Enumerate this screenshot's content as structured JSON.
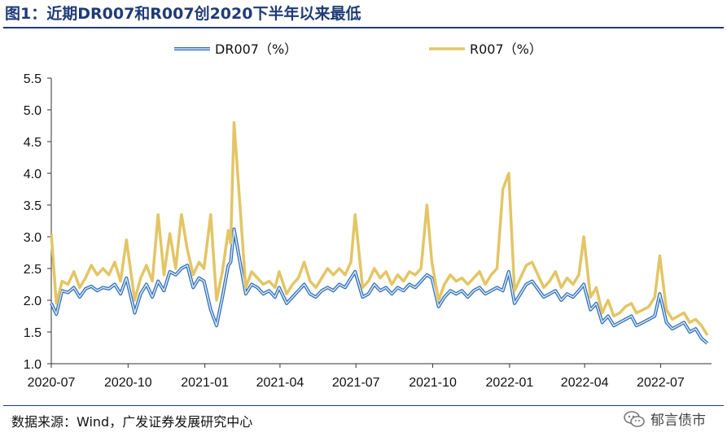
{
  "header": {
    "title": "图1：近期DR007和R007创2020下半年以来最低"
  },
  "footer": {
    "source": "数据来源：Wind，广发证券发展研究中心",
    "brand": "郁言债市",
    "brand_icon": "wechat-icon"
  },
  "colors": {
    "dr007": "#2f6eb5",
    "dr007_inner": "#d7e6f5",
    "r007": "#e3c565"
  },
  "chart_data": {
    "type": "line",
    "title": "图1：近期DR007和R007创2020下半年以来最低",
    "xlabel": "",
    "ylabel": "",
    "ylim": [
      1.0,
      5.5
    ],
    "yticks": [
      "1.0",
      "1.5",
      "2.0",
      "2.5",
      "3.0",
      "3.5",
      "4.0",
      "4.5",
      "5.0",
      "5.5"
    ],
    "xlim": [
      "2020-07-01",
      "2022-08-31"
    ],
    "xticks": [
      "2020-07",
      "2020-10",
      "2021-01",
      "2021-04",
      "2021-07",
      "2021-10",
      "2022-01",
      "2022-04",
      "2022-07"
    ],
    "grid": false,
    "legend_position": "top",
    "series": [
      {
        "name": "DR007（%）",
        "x": [
          "2020-07-01",
          "2020-07-07",
          "2020-07-14",
          "2020-07-21",
          "2020-07-28",
          "2020-08-04",
          "2020-08-11",
          "2020-08-18",
          "2020-08-25",
          "2020-09-01",
          "2020-09-08",
          "2020-09-15",
          "2020-09-22",
          "2020-09-29",
          "2020-10-09",
          "2020-10-16",
          "2020-10-23",
          "2020-10-30",
          "2020-11-06",
          "2020-11-13",
          "2020-11-20",
          "2020-11-27",
          "2020-12-04",
          "2020-12-11",
          "2020-12-18",
          "2020-12-25",
          "2020-12-31",
          "2021-01-08",
          "2021-01-15",
          "2021-01-22",
          "2021-01-29",
          "2021-02-01",
          "2021-02-05",
          "2021-02-19",
          "2021-02-26",
          "2021-03-05",
          "2021-03-12",
          "2021-03-19",
          "2021-03-26",
          "2021-03-31",
          "2021-04-09",
          "2021-04-16",
          "2021-04-23",
          "2021-04-30",
          "2021-05-07",
          "2021-05-14",
          "2021-05-21",
          "2021-05-28",
          "2021-06-04",
          "2021-06-11",
          "2021-06-18",
          "2021-06-25",
          "2021-06-30",
          "2021-07-09",
          "2021-07-16",
          "2021-07-23",
          "2021-07-30",
          "2021-08-06",
          "2021-08-13",
          "2021-08-20",
          "2021-08-27",
          "2021-09-03",
          "2021-09-10",
          "2021-09-17",
          "2021-09-24",
          "2021-09-30",
          "2021-10-08",
          "2021-10-15",
          "2021-10-22",
          "2021-10-29",
          "2021-11-05",
          "2021-11-12",
          "2021-11-19",
          "2021-11-26",
          "2021-12-03",
          "2021-12-10",
          "2021-12-17",
          "2021-12-24",
          "2021-12-31",
          "2022-01-07",
          "2022-01-14",
          "2022-01-21",
          "2022-01-28",
          "2022-02-11",
          "2022-02-18",
          "2022-02-25",
          "2022-03-04",
          "2022-03-11",
          "2022-03-18",
          "2022-03-25",
          "2022-03-31",
          "2022-04-08",
          "2022-04-15",
          "2022-04-22",
          "2022-04-29",
          "2022-05-06",
          "2022-05-13",
          "2022-05-20",
          "2022-05-27",
          "2022-06-02",
          "2022-06-10",
          "2022-06-17",
          "2022-06-24",
          "2022-06-30",
          "2022-07-08",
          "2022-07-15",
          "2022-07-22",
          "2022-07-29",
          "2022-08-05",
          "2022-08-12",
          "2022-08-19",
          "2022-08-26"
        ],
        "values": [
          1.95,
          1.78,
          2.15,
          2.12,
          2.2,
          2.05,
          2.18,
          2.22,
          2.15,
          2.2,
          2.18,
          2.25,
          2.1,
          2.35,
          1.8,
          2.1,
          2.25,
          2.05,
          2.3,
          2.15,
          2.45,
          2.4,
          2.5,
          2.55,
          2.2,
          2.35,
          2.3,
          1.85,
          1.6,
          2.05,
          2.55,
          2.6,
          3.12,
          2.1,
          2.25,
          2.2,
          2.1,
          2.15,
          2.05,
          2.2,
          1.95,
          2.05,
          2.15,
          2.25,
          2.1,
          2.05,
          2.15,
          2.2,
          2.15,
          2.25,
          2.2,
          2.35,
          2.45,
          2.05,
          2.1,
          2.25,
          2.15,
          2.2,
          2.1,
          2.2,
          2.15,
          2.25,
          2.2,
          2.3,
          2.4,
          2.35,
          1.9,
          2.05,
          2.15,
          2.1,
          2.15,
          2.05,
          2.15,
          2.2,
          2.1,
          2.15,
          2.2,
          2.15,
          2.45,
          1.95,
          2.1,
          2.25,
          2.3,
          2.05,
          2.1,
          2.15,
          2.0,
          2.1,
          2.05,
          2.15,
          2.25,
          1.85,
          1.95,
          1.65,
          1.75,
          1.6,
          1.65,
          1.7,
          1.75,
          1.6,
          1.65,
          1.7,
          1.75,
          2.1,
          1.65,
          1.55,
          1.6,
          1.65,
          1.5,
          1.55,
          1.4,
          1.32
        ]
      },
      {
        "name": "R007（%）",
        "x": [
          "2020-07-01",
          "2020-07-07",
          "2020-07-14",
          "2020-07-21",
          "2020-07-28",
          "2020-08-04",
          "2020-08-11",
          "2020-08-18",
          "2020-08-25",
          "2020-09-01",
          "2020-09-08",
          "2020-09-15",
          "2020-09-22",
          "2020-09-29",
          "2020-10-09",
          "2020-10-16",
          "2020-10-23",
          "2020-10-30",
          "2020-11-06",
          "2020-11-13",
          "2020-11-20",
          "2020-11-27",
          "2020-12-04",
          "2020-12-11",
          "2020-12-18",
          "2020-12-25",
          "2020-12-31",
          "2021-01-08",
          "2021-01-15",
          "2021-01-22",
          "2021-01-29",
          "2021-02-01",
          "2021-02-05",
          "2021-02-19",
          "2021-02-26",
          "2021-03-05",
          "2021-03-12",
          "2021-03-19",
          "2021-03-26",
          "2021-03-31",
          "2021-04-09",
          "2021-04-16",
          "2021-04-23",
          "2021-04-30",
          "2021-05-07",
          "2021-05-14",
          "2021-05-21",
          "2021-05-28",
          "2021-06-04",
          "2021-06-11",
          "2021-06-18",
          "2021-06-25",
          "2021-06-30",
          "2021-07-09",
          "2021-07-16",
          "2021-07-23",
          "2021-07-30",
          "2021-08-06",
          "2021-08-13",
          "2021-08-20",
          "2021-08-27",
          "2021-09-03",
          "2021-09-10",
          "2021-09-17",
          "2021-09-24",
          "2021-09-30",
          "2021-10-08",
          "2021-10-15",
          "2021-10-22",
          "2021-10-29",
          "2021-11-05",
          "2021-11-12",
          "2021-11-19",
          "2021-11-26",
          "2021-12-03",
          "2021-12-10",
          "2021-12-17",
          "2021-12-24",
          "2021-12-31",
          "2022-01-07",
          "2022-01-14",
          "2022-01-21",
          "2022-01-28",
          "2022-02-11",
          "2022-02-18",
          "2022-02-25",
          "2022-03-04",
          "2022-03-11",
          "2022-03-18",
          "2022-03-25",
          "2022-03-31",
          "2022-04-08",
          "2022-04-15",
          "2022-04-22",
          "2022-04-29",
          "2022-05-06",
          "2022-05-13",
          "2022-05-20",
          "2022-05-27",
          "2022-06-02",
          "2022-06-10",
          "2022-06-17",
          "2022-06-24",
          "2022-06-30",
          "2022-07-08",
          "2022-07-15",
          "2022-07-22",
          "2022-07-29",
          "2022-08-05",
          "2022-08-12",
          "2022-08-19",
          "2022-08-26"
        ],
        "values": [
          3.05,
          1.95,
          2.3,
          2.25,
          2.45,
          2.2,
          2.35,
          2.55,
          2.4,
          2.5,
          2.4,
          2.6,
          2.3,
          2.95,
          2.0,
          2.35,
          2.55,
          2.3,
          3.35,
          2.4,
          3.05,
          2.5,
          3.35,
          2.8,
          2.4,
          2.6,
          2.5,
          3.35,
          2.0,
          2.45,
          3.1,
          2.9,
          4.8,
          2.2,
          2.45,
          2.35,
          2.25,
          2.3,
          2.2,
          2.45,
          2.1,
          2.25,
          2.35,
          2.6,
          2.3,
          2.2,
          2.35,
          2.5,
          2.4,
          2.5,
          2.4,
          2.6,
          3.35,
          2.2,
          2.3,
          2.5,
          2.35,
          2.45,
          2.25,
          2.4,
          2.3,
          2.45,
          2.4,
          2.5,
          3.5,
          2.6,
          2.0,
          2.25,
          2.4,
          2.3,
          2.35,
          2.25,
          2.35,
          2.45,
          2.25,
          2.4,
          2.5,
          3.75,
          4.0,
          2.15,
          2.35,
          2.55,
          2.6,
          2.2,
          2.3,
          2.45,
          2.2,
          2.35,
          2.25,
          2.4,
          3.0,
          2.05,
          2.2,
          1.8,
          2.0,
          1.75,
          1.8,
          1.9,
          1.95,
          1.8,
          1.85,
          1.9,
          2.05,
          2.7,
          1.85,
          1.7,
          1.75,
          1.8,
          1.65,
          1.7,
          1.6,
          1.45
        ]
      }
    ]
  }
}
